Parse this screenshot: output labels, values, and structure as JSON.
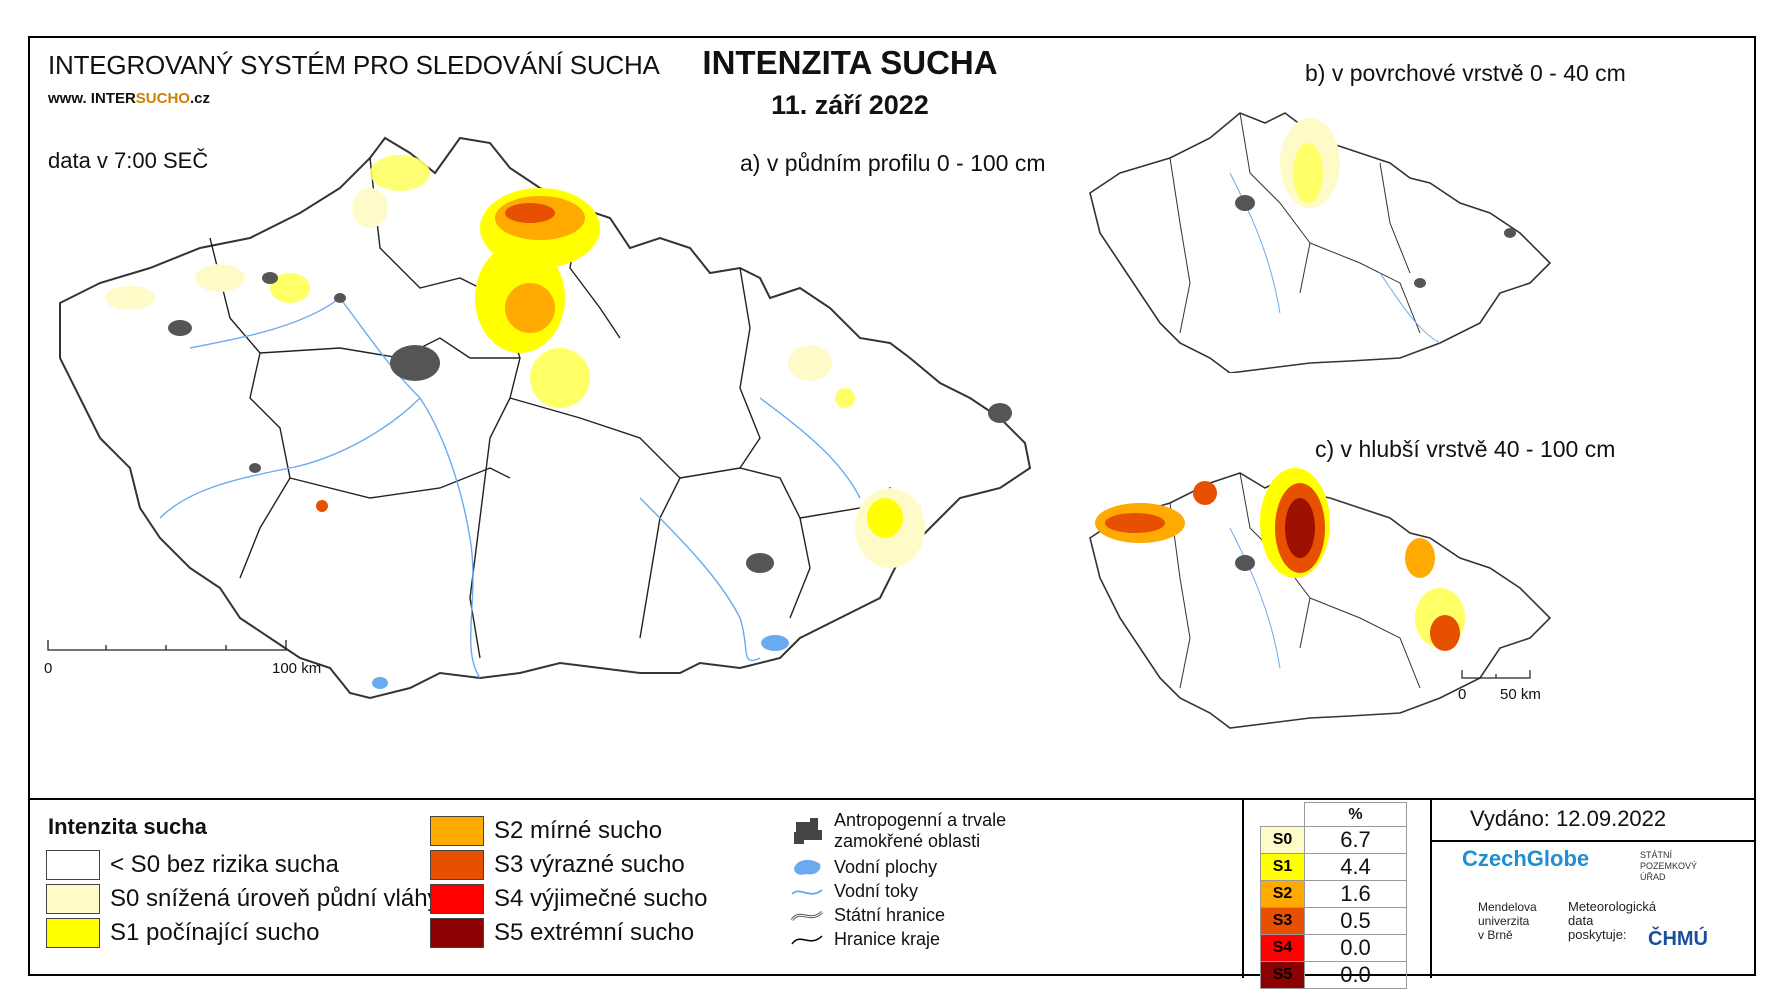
{
  "header": {
    "system_name": "INTEGROVANÝ SYSTÉM PRO SLEDOVÁNÍ SUCHA",
    "url_prefix": "www. INTER",
    "url_highlight": "SUCHO",
    "url_suffix": ".cz",
    "data_time": "data v 7:00 SEČ",
    "title": "INTENZITA SUCHA",
    "date": "11. září 2022"
  },
  "maps": {
    "a_label": "a) v půdním profilu 0 - 100 cm",
    "b_label": "b) v povrchové vrstvě 0 - 40 cm",
    "c_label": "c) v hlubší vrstvě 40 - 100 cm",
    "scale_main": {
      "start": "0",
      "end": "100 km"
    },
    "scale_small": {
      "start": "0",
      "end": "50 km"
    }
  },
  "legend": {
    "title": "Intenzita sucha",
    "classes": [
      {
        "label": "< S0 bez rizika sucha",
        "color": "#ffffff"
      },
      {
        "label": "S0 snížená úroveň půdní vláhy",
        "color": "#fffbc8"
      },
      {
        "label": "S1 počínající sucho",
        "color": "#ffff00"
      },
      {
        "label": "S2 mírné sucho",
        "color": "#ffaa00"
      },
      {
        "label": "S3 výrazné sucho",
        "color": "#e65000"
      },
      {
        "label": "S4 výjimečné sucho",
        "color": "#ff0000"
      },
      {
        "label": "S5 extrémní sucho",
        "color": "#8b0000"
      }
    ],
    "symbols": [
      {
        "icon": "urban-area-icon",
        "label_line1": "Antropogenní a trvale",
        "label_line2": "zamokřené oblasti"
      },
      {
        "icon": "water-body-icon",
        "label_line1": "Vodní plochy",
        "label_line2": ""
      },
      {
        "icon": "river-icon",
        "label_line1": "Vodní toky",
        "label_line2": ""
      },
      {
        "icon": "state-border-icon",
        "label_line1": "Státní hranice",
        "label_line2": ""
      },
      {
        "icon": "region-border-icon",
        "label_line1": "Hranice kraje",
        "label_line2": ""
      }
    ]
  },
  "percent_table": {
    "header": "%",
    "rows": [
      {
        "code": "S0",
        "value": "6.7",
        "color": "#fffbc8",
        "text_color": "#000000"
      },
      {
        "code": "S1",
        "value": "4.4",
        "color": "#ffff00",
        "text_color": "#000000"
      },
      {
        "code": "S2",
        "value": "1.6",
        "color": "#ffaa00",
        "text_color": "#000000"
      },
      {
        "code": "S3",
        "value": "0.5",
        "color": "#e65000",
        "text_color": "#000000"
      },
      {
        "code": "S4",
        "value": "0.0",
        "color": "#ff0000",
        "text_color": "#000000"
      },
      {
        "code": "S5",
        "value": "0.0",
        "color": "#8b0000",
        "text_color": "#000000"
      }
    ]
  },
  "footer": {
    "issued": "Vydáno: 12.09.2022",
    "logo_czechglobe": "CzechGlobe",
    "logo_spu": [
      "STÁTNÍ",
      "POZEMKOVÝ",
      "ÚŘAD"
    ],
    "logo_mendelu": [
      "Mendelova",
      "univerzita",
      "v Brně"
    ],
    "met_data": [
      "Meteorologická",
      "data",
      "poskytuje:"
    ],
    "logo_chmu": "ČHMÚ"
  }
}
